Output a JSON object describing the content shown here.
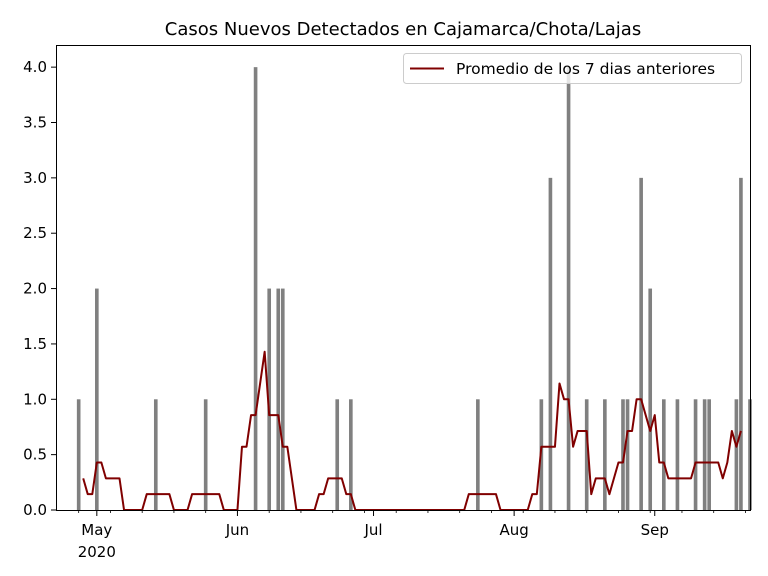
{
  "chart_data": {
    "type": "bar",
    "title": "Casos Nuevos Detectados en Cajamarca/Chota/Lajas",
    "xlabel": "",
    "ylabel": "",
    "x_range": [
      "2020-04-22",
      "2020-09-22"
    ],
    "ylim": [
      0,
      4.2
    ],
    "y_ticks": [
      0.0,
      0.5,
      1.0,
      1.5,
      2.0,
      2.5,
      3.0,
      3.5,
      4.0
    ],
    "y_tick_labels": [
      "0.0",
      "0.5",
      "1.0",
      "1.5",
      "2.0",
      "2.5",
      "3.0",
      "3.5",
      "4.0"
    ],
    "x_ticks": [
      {
        "date": "2020-05-01",
        "label": "May",
        "sublabel": "2020"
      },
      {
        "date": "2020-06-01",
        "label": "Jun",
        "sublabel": ""
      },
      {
        "date": "2020-07-01",
        "label": "Jul",
        "sublabel": ""
      },
      {
        "date": "2020-08-01",
        "label": "Aug",
        "sublabel": ""
      },
      {
        "date": "2020-09-01",
        "label": "Sep",
        "sublabel": ""
      }
    ],
    "grid": false,
    "legend_position": "top-right",
    "bar_color": "#808080",
    "line_color": "#800000",
    "bars": [
      {
        "date": "2020-04-27",
        "value": 1
      },
      {
        "date": "2020-05-01",
        "value": 2
      },
      {
        "date": "2020-05-14",
        "value": 1
      },
      {
        "date": "2020-05-25",
        "value": 1
      },
      {
        "date": "2020-06-05",
        "value": 4
      },
      {
        "date": "2020-06-08",
        "value": 2
      },
      {
        "date": "2020-06-10",
        "value": 2
      },
      {
        "date": "2020-06-11",
        "value": 2
      },
      {
        "date": "2020-06-23",
        "value": 1
      },
      {
        "date": "2020-06-26",
        "value": 1
      },
      {
        "date": "2020-07-24",
        "value": 1
      },
      {
        "date": "2020-08-07",
        "value": 1
      },
      {
        "date": "2020-08-09",
        "value": 3
      },
      {
        "date": "2020-08-13",
        "value": 4
      },
      {
        "date": "2020-08-17",
        "value": 1
      },
      {
        "date": "2020-08-21",
        "value": 1
      },
      {
        "date": "2020-08-25",
        "value": 1
      },
      {
        "date": "2020-08-26",
        "value": 1
      },
      {
        "date": "2020-08-29",
        "value": 3
      },
      {
        "date": "2020-08-31",
        "value": 2
      },
      {
        "date": "2020-09-03",
        "value": 1
      },
      {
        "date": "2020-09-06",
        "value": 1
      },
      {
        "date": "2020-09-10",
        "value": 1
      },
      {
        "date": "2020-09-12",
        "value": 1
      },
      {
        "date": "2020-09-13",
        "value": 1
      },
      {
        "date": "2020-09-19",
        "value": 1
      },
      {
        "date": "2020-09-20",
        "value": 3
      },
      {
        "date": "2020-09-22",
        "value": 1
      }
    ],
    "series": [
      {
        "name": "Promedio de los 7 dias anteriores",
        "type": "line",
        "start_date": "2020-04-28",
        "values": [
          0.286,
          0.143,
          0.143,
          0.429,
          0.429,
          0.286,
          0.286,
          0.286,
          0.286,
          0,
          0,
          0,
          0,
          0,
          0.143,
          0.143,
          0.143,
          0.143,
          0.143,
          0.143,
          0,
          0,
          0,
          0,
          0.143,
          0.143,
          0.143,
          0.143,
          0.143,
          0.143,
          0.143,
          0,
          0,
          0,
          0,
          0.571,
          0.571,
          0.857,
          0.857,
          1.143,
          1.429,
          0.857,
          0.857,
          0.857,
          0.571,
          0.571,
          0.286,
          0,
          0,
          0,
          0,
          0,
          0.143,
          0.143,
          0.286,
          0.286,
          0.286,
          0.286,
          0.143,
          0.143,
          0,
          0,
          0,
          0,
          0,
          0,
          0,
          0,
          0,
          0,
          0,
          0,
          0,
          0,
          0,
          0,
          0,
          0,
          0,
          0,
          0,
          0,
          0,
          0,
          0,
          0.143,
          0.143,
          0.143,
          0.143,
          0.143,
          0.143,
          0.143,
          0,
          0,
          0,
          0,
          0,
          0,
          0,
          0.143,
          0.143,
          0.571,
          0.571,
          0.571,
          0.571,
          1.143,
          1,
          1,
          0.571,
          0.714,
          0.714,
          0.714,
          0.143,
          0.286,
          0.286,
          0.286,
          0.143,
          0.286,
          0.429,
          0.429,
          0.714,
          0.714,
          1,
          1,
          0.857,
          0.714,
          0.857,
          0.429,
          0.429,
          0.286,
          0.286,
          0.286,
          0.286,
          0.286,
          0.286,
          0.429,
          0.429,
          0.429,
          0.429,
          0.429,
          0.429,
          0.286,
          0.429,
          0.714,
          0.571,
          0.714
        ]
      }
    ]
  }
}
